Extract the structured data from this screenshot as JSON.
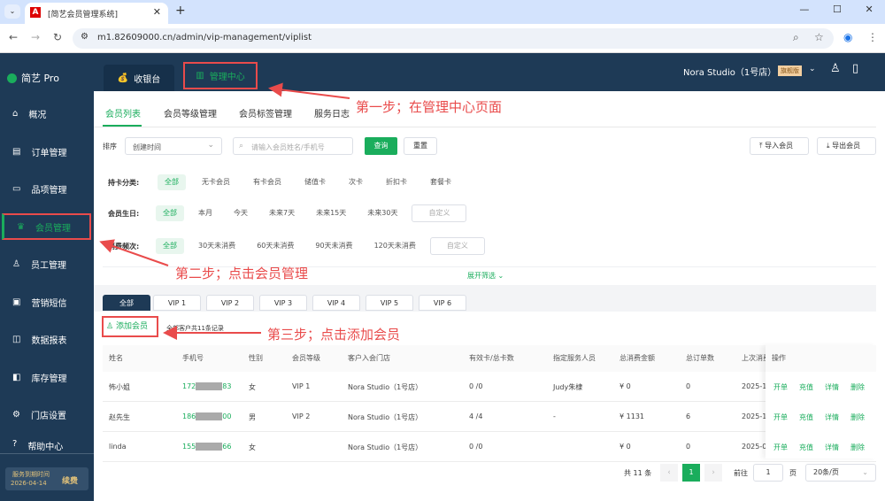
{
  "browser": {
    "tab_title": "[简艺会员管理系统]",
    "url": "m1.82609000.cn/admin/vip-management/viplist",
    "favicon": "A"
  },
  "app": {
    "logo": "简艺 Pro",
    "top_tabs": [
      "收银台",
      "管理中心"
    ],
    "store": "Nora Studio（1号店）",
    "edition_badge": "旗舰版"
  },
  "sidebar": {
    "items": [
      {
        "label": "概况",
        "icon": "home-icon"
      },
      {
        "label": "订单管理",
        "icon": "order-icon"
      },
      {
        "label": "品项管理",
        "icon": "briefcase-icon"
      },
      {
        "label": "会员管理",
        "icon": "crown-icon",
        "active": true
      },
      {
        "label": "员工管理",
        "icon": "user-icon"
      },
      {
        "label": "营销短信",
        "icon": "message-icon"
      },
      {
        "label": "数据报表",
        "icon": "chart-icon"
      },
      {
        "label": "库存管理",
        "icon": "inventory-icon"
      },
      {
        "label": "门店设置",
        "icon": "gear-icon"
      },
      {
        "label": "帮助中心",
        "icon": "help-icon"
      }
    ],
    "expiry_label": "服务到期时间",
    "expiry_date": "2026-04-14",
    "renew": "续费"
  },
  "subtabs": [
    "会员列表",
    "会员等级管理",
    "会员标签管理",
    "服务日志"
  ],
  "toolbar": {
    "sort_label": "排序",
    "sort_value": "创建时间",
    "search_placeholder": "请输入会员姓名/手机号",
    "query": "查询",
    "reset": "重置",
    "import": "导入会员",
    "export": "导出会员"
  },
  "filters": [
    {
      "label": "持卡分类:",
      "options": [
        "全部",
        "无卡会员",
        "有卡会员",
        "储值卡",
        "次卡",
        "折扣卡",
        "套餐卡"
      ]
    },
    {
      "label": "会员生日:",
      "options": [
        "全部",
        "本月",
        "今天",
        "未来7天",
        "未来15天",
        "未来30天"
      ],
      "custom": "自定义"
    },
    {
      "label": "消费频次:",
      "options": [
        "全部",
        "30天未消费",
        "60天未消费",
        "90天未消费",
        "120天未消费"
      ],
      "custom": "自定义"
    }
  ],
  "expand": "展开筛选",
  "level_tabs": [
    "全部",
    "VIP 1",
    "VIP 2",
    "VIP 3",
    "VIP 4",
    "VIP 5",
    "VIP 6"
  ],
  "add_member": "添加会员",
  "total_text": "全部客户共11条记录",
  "table": {
    "headers": [
      "姓名",
      "手机号",
      "性别",
      "会员等级",
      "客户入会门店",
      "有效卡/总卡数",
      "指定服务人员",
      "总消费金额",
      "总订单数",
      "上次消费",
      "操作"
    ],
    "rows": [
      [
        "怖小姐",
        "172",
        "83",
        "女",
        "VIP 1",
        "Nora Studio（1号店）",
        "0 /0",
        "Judy朱棣",
        "¥ 0",
        "0",
        "2025-1"
      ],
      [
        "赵先生",
        "186",
        "00",
        "男",
        "VIP 2",
        "Nora Studio（1号店）",
        "4 /4",
        "-",
        "¥ 1131",
        "6",
        "2025-1"
      ],
      [
        "linda",
        "155",
        "66",
        "女",
        "",
        "Nora Studio（1号店）",
        "0 /0",
        "",
        "¥ 0",
        "0",
        "2025-0"
      ]
    ],
    "actions": [
      "开单",
      "充值",
      "详情",
      "删除"
    ]
  },
  "pagination": {
    "total": "共 11 条",
    "current": "1",
    "goto": "前往",
    "page_value": "1",
    "page_unit": "页",
    "page_size": "20条/页"
  },
  "annotations": [
    "第一步；在管理中心页面",
    "第二步；点击会员管理",
    "第三步；点击添加会员"
  ],
  "colors": {
    "accent": "#1aad5c",
    "nav": "#1e3a56",
    "annotation": "#e94b4b"
  }
}
